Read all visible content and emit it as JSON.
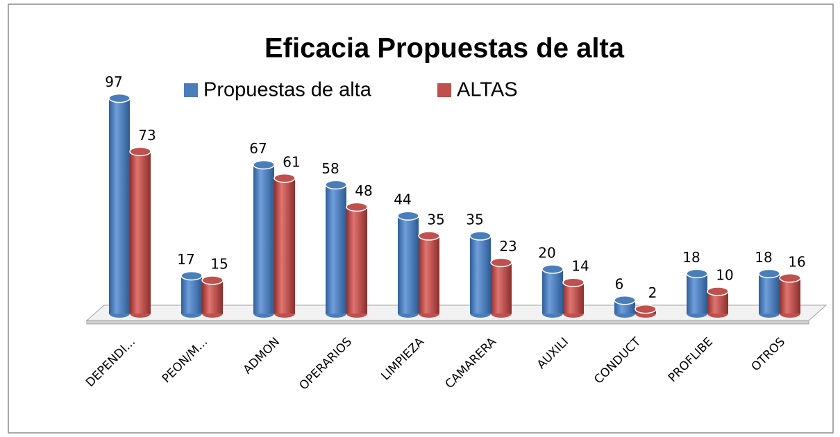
{
  "chart_data": {
    "type": "bar",
    "title": "Eficacia Propuestas de alta",
    "categories": [
      "DEPENDI...",
      "PEON/M...",
      "ADMON",
      "OPERARIOS",
      "LIMPIEZA",
      "CAMARERA",
      "AUXILI",
      "CONDUCT",
      "PROFLIBE",
      "OTROS"
    ],
    "series": [
      {
        "name": "Propuestas de alta",
        "color": "#4a7ebb",
        "values": [
          97,
          17,
          67,
          58,
          44,
          35,
          20,
          6,
          18,
          18
        ]
      },
      {
        "name": "ALTAS",
        "color": "#c0504d",
        "values": [
          73,
          15,
          61,
          48,
          35,
          23,
          14,
          2,
          10,
          16
        ]
      }
    ]
  }
}
